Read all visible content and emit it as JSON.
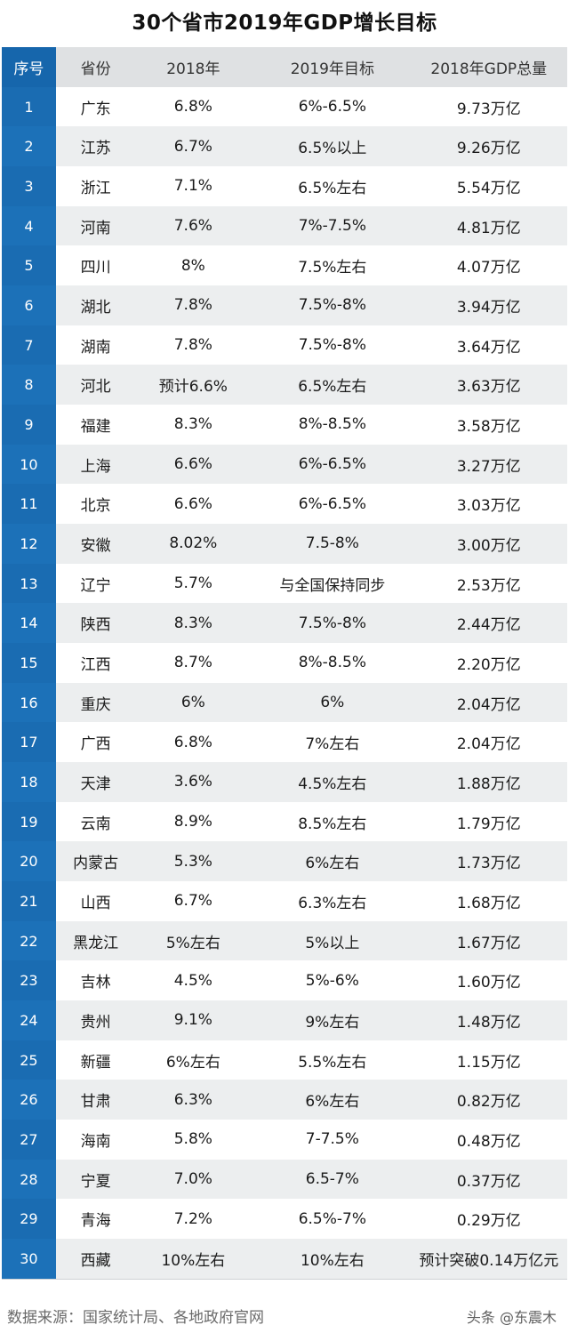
{
  "title": "30个省市2019年GDP增长目标",
  "headers": {
    "idx": "序号",
    "province": "省份",
    "y2018": "2018年",
    "target2019": "2019年目标",
    "gdp2018": "2018年GDP总量"
  },
  "rows": [
    {
      "idx": "1",
      "province": "广东",
      "y2018": "6.8%",
      "target2019": "6%-6.5%",
      "gdp2018": "9.73万亿"
    },
    {
      "idx": "2",
      "province": "江苏",
      "y2018": "6.7%",
      "target2019": "6.5%以上",
      "gdp2018": "9.26万亿"
    },
    {
      "idx": "3",
      "province": "浙江",
      "y2018": "7.1%",
      "target2019": "6.5%左右",
      "gdp2018": "5.54万亿"
    },
    {
      "idx": "4",
      "province": "河南",
      "y2018": "7.6%",
      "target2019": "7%-7.5%",
      "gdp2018": "4.81万亿"
    },
    {
      "idx": "5",
      "province": "四川",
      "y2018": "8%",
      "target2019": "7.5%左右",
      "gdp2018": "4.07万亿"
    },
    {
      "idx": "6",
      "province": "湖北",
      "y2018": "7.8%",
      "target2019": "7.5%-8%",
      "gdp2018": "3.94万亿"
    },
    {
      "idx": "7",
      "province": "湖南",
      "y2018": "7.8%",
      "target2019": "7.5%-8%",
      "gdp2018": "3.64万亿"
    },
    {
      "idx": "8",
      "province": "河北",
      "y2018": "预计6.6%",
      "target2019": "6.5%左右",
      "gdp2018": "3.63万亿"
    },
    {
      "idx": "9",
      "province": "福建",
      "y2018": "8.3%",
      "target2019": "8%-8.5%",
      "gdp2018": "3.58万亿"
    },
    {
      "idx": "10",
      "province": "上海",
      "y2018": "6.6%",
      "target2019": "6%-6.5%",
      "gdp2018": "3.27万亿"
    },
    {
      "idx": "11",
      "province": "北京",
      "y2018": "6.6%",
      "target2019": "6%-6.5%",
      "gdp2018": "3.03万亿"
    },
    {
      "idx": "12",
      "province": "安徽",
      "y2018": "8.02%",
      "target2019": "7.5-8%",
      "gdp2018": "3.00万亿"
    },
    {
      "idx": "13",
      "province": "辽宁",
      "y2018": "5.7%",
      "target2019": "与全国保持同步",
      "gdp2018": "2.53万亿"
    },
    {
      "idx": "14",
      "province": "陕西",
      "y2018": "8.3%",
      "target2019": "7.5%-8%",
      "gdp2018": "2.44万亿"
    },
    {
      "idx": "15",
      "province": "江西",
      "y2018": "8.7%",
      "target2019": "8%-8.5%",
      "gdp2018": "2.20万亿"
    },
    {
      "idx": "16",
      "province": "重庆",
      "y2018": "6%",
      "target2019": "6%",
      "gdp2018": "2.04万亿"
    },
    {
      "idx": "17",
      "province": "广西",
      "y2018": "6.8%",
      "target2019": "7%左右",
      "gdp2018": "2.04万亿"
    },
    {
      "idx": "18",
      "province": "天津",
      "y2018": "3.6%",
      "target2019": "4.5%左右",
      "gdp2018": "1.88万亿"
    },
    {
      "idx": "19",
      "province": "云南",
      "y2018": "8.9%",
      "target2019": "8.5%左右",
      "gdp2018": "1.79万亿"
    },
    {
      "idx": "20",
      "province": "内蒙古",
      "y2018": "5.3%",
      "target2019": "6%左右",
      "gdp2018": "1.73万亿"
    },
    {
      "idx": "21",
      "province": "山西",
      "y2018": "6.7%",
      "target2019": "6.3%左右",
      "gdp2018": "1.68万亿"
    },
    {
      "idx": "22",
      "province": "黑龙江",
      "y2018": "5%左右",
      "target2019": "5%以上",
      "gdp2018": "1.67万亿"
    },
    {
      "idx": "23",
      "province": "吉林",
      "y2018": "4.5%",
      "target2019": "5%-6%",
      "gdp2018": "1.60万亿"
    },
    {
      "idx": "24",
      "province": "贵州",
      "y2018": "9.1%",
      "target2019": "9%左右",
      "gdp2018": "1.48万亿"
    },
    {
      "idx": "25",
      "province": "新疆",
      "y2018": "6%左右",
      "target2019": "5.5%左右",
      "gdp2018": "1.15万亿"
    },
    {
      "idx": "26",
      "province": "甘肃",
      "y2018": "6.3%",
      "target2019": "6%左右",
      "gdp2018": "0.82万亿"
    },
    {
      "idx": "27",
      "province": "海南",
      "y2018": "5.8%",
      "target2019": "7-7.5%",
      "gdp2018": "0.48万亿"
    },
    {
      "idx": "28",
      "province": "宁夏",
      "y2018": "7.0%",
      "target2019": "6.5-7%",
      "gdp2018": "0.37万亿"
    },
    {
      "idx": "29",
      "province": "青海",
      "y2018": "7.2%",
      "target2019": "6.5%-7%",
      "gdp2018": "0.29万亿"
    },
    {
      "idx": "30",
      "province": "西藏",
      "y2018": "10%左右",
      "target2019": "10%左右",
      "gdp2018": "预计突破0.14万亿元"
    }
  ],
  "footer": {
    "source": "数据来源：国家统计局、各地政府官网",
    "watermark": "头条 @东震木"
  }
}
